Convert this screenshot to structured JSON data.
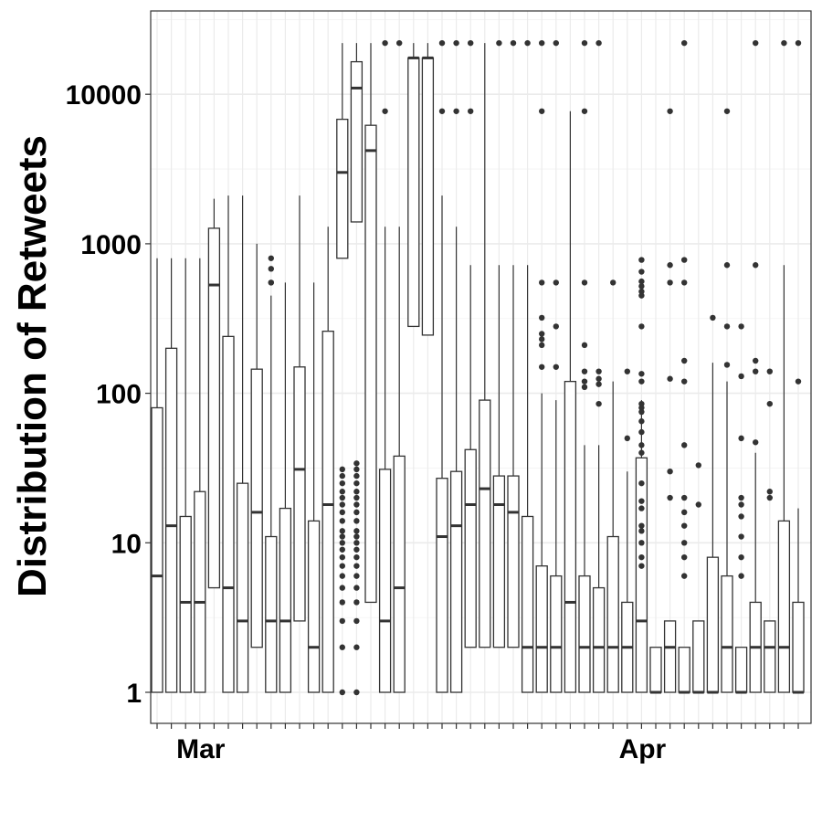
{
  "chart_data": {
    "type": "box",
    "title": "",
    "xlabel": "",
    "ylabel": "Distribution of Retweets",
    "y_scale": "log10",
    "ylim": [
      0.6,
      30000
    ],
    "y_ticks": [
      1,
      10,
      100,
      1000,
      10000
    ],
    "y_tick_labels": [
      "1",
      "10",
      "100",
      "1000",
      "10000"
    ],
    "x_tick_labels": [
      {
        "label": "Mar",
        "index": 3
      },
      {
        "label": "Apr",
        "index": 34
      }
    ],
    "grid": true,
    "legend": "none",
    "colors": {
      "box_fill": "#ffffff",
      "box_stroke": "#333333",
      "outlier": "#333333",
      "grid": "#ebebeb",
      "panel_border": "#333333"
    },
    "series": [
      {
        "min": 1,
        "q1": 1,
        "median": 6,
        "q3": 80,
        "max": 800,
        "outliers": []
      },
      {
        "min": 1,
        "q1": 1,
        "median": 13,
        "q3": 200,
        "max": 800,
        "outliers": []
      },
      {
        "min": 1,
        "q1": 1,
        "median": 4,
        "q3": 15,
        "max": 800,
        "outliers": []
      },
      {
        "min": 1,
        "q1": 1,
        "median": 4,
        "q3": 22,
        "max": 800,
        "outliers": []
      },
      {
        "min": 5,
        "q1": 5,
        "median": 530,
        "q3": 1270,
        "max": 2000,
        "outliers": []
      },
      {
        "min": 1,
        "q1": 1,
        "median": 5,
        "q3": 240,
        "max": 2100,
        "outliers": []
      },
      {
        "min": 1,
        "q1": 1,
        "median": 3,
        "q3": 25,
        "max": 2100,
        "outliers": []
      },
      {
        "min": 2,
        "q1": 2,
        "median": 16,
        "q3": 145,
        "max": 1000,
        "outliers": []
      },
      {
        "min": 1,
        "q1": 1,
        "median": 3,
        "q3": 11,
        "max": 450,
        "outliers": [
          550,
          800,
          680,
          550
        ]
      },
      {
        "min": 1,
        "q1": 1,
        "median": 3,
        "q3": 17,
        "max": 550,
        "outliers": []
      },
      {
        "min": 3,
        "q1": 3,
        "median": 31,
        "q3": 150,
        "max": 2100,
        "outliers": []
      },
      {
        "min": 1,
        "q1": 1,
        "median": 2,
        "q3": 14,
        "max": 550,
        "outliers": []
      },
      {
        "min": 1,
        "q1": 1,
        "median": 18,
        "q3": 260,
        "max": 1300,
        "outliers": []
      },
      {
        "min": 800,
        "q1": 800,
        "median": 3000,
        "q3": 6800,
        "max": 22000,
        "outliers": [
          1,
          2,
          3,
          4,
          5,
          6,
          7,
          8,
          9,
          10,
          11,
          12,
          14,
          16,
          18,
          20,
          22,
          25,
          28,
          31
        ]
      },
      {
        "min": 1400,
        "q1": 1400,
        "median": 11000,
        "q3": 16500,
        "max": 22000,
        "outliers": [
          1,
          2,
          3,
          4,
          5,
          6,
          7,
          8,
          9,
          10,
          11,
          12,
          14,
          16,
          18,
          20,
          22,
          25,
          28,
          31,
          34
        ]
      },
      {
        "min": 4,
        "q1": 4,
        "median": 4200,
        "q3": 6200,
        "max": 22000,
        "outliers": []
      },
      {
        "min": 1,
        "q1": 1,
        "median": 3,
        "q3": 31,
        "max": 1300,
        "outliers": [
          7700,
          22000
        ]
      },
      {
        "min": 1,
        "q1": 1,
        "median": 5,
        "q3": 38,
        "max": 1300,
        "outliers": [
          22000
        ]
      },
      {
        "min": 280,
        "q1": 280,
        "median": 17500,
        "q3": 17500,
        "max": 22000,
        "outliers": []
      },
      {
        "min": 245,
        "q1": 245,
        "median": 17500,
        "q3": 17500,
        "max": 22000,
        "outliers": []
      },
      {
        "min": 1,
        "q1": 1,
        "median": 11,
        "q3": 27,
        "max": 2100,
        "outliers": [
          7700,
          22000
        ]
      },
      {
        "min": 1,
        "q1": 1,
        "median": 13,
        "q3": 30,
        "max": 1300,
        "outliers": [
          7700,
          22000
        ]
      },
      {
        "min": 2,
        "q1": 2,
        "median": 18,
        "q3": 42,
        "max": 720,
        "outliers": [
          7700,
          22000
        ]
      },
      {
        "min": 2,
        "q1": 2,
        "median": 23,
        "q3": 90,
        "max": 22000,
        "outliers": []
      },
      {
        "min": 2,
        "q1": 2,
        "median": 18,
        "q3": 28,
        "max": 720,
        "outliers": [
          22000
        ]
      },
      {
        "min": 2,
        "q1": 2,
        "median": 16,
        "q3": 28,
        "max": 720,
        "outliers": [
          22000
        ]
      },
      {
        "min": 1,
        "q1": 1,
        "median": 2,
        "q3": 15,
        "max": 720,
        "outliers": [
          22000
        ]
      },
      {
        "min": 1,
        "q1": 1,
        "median": 2,
        "q3": 7,
        "max": 100,
        "outliers": [
          150,
          210,
          230,
          250,
          320,
          550,
          7700,
          22000
        ]
      },
      {
        "min": 1,
        "q1": 1,
        "median": 2,
        "q3": 6,
        "max": 90,
        "outliers": [
          150,
          280,
          550,
          22000
        ]
      },
      {
        "min": 1,
        "q1": 1,
        "median": 4,
        "q3": 120,
        "max": 7700,
        "outliers": []
      },
      {
        "min": 1,
        "q1": 1,
        "median": 2,
        "q3": 6,
        "max": 45,
        "outliers": [
          110,
          120,
          140,
          210,
          550,
          7700,
          22000
        ]
      },
      {
        "min": 1,
        "q1": 1,
        "median": 2,
        "q3": 5,
        "max": 45,
        "outliers": [
          85,
          115,
          125,
          140,
          22000
        ]
      },
      {
        "min": 1,
        "q1": 1,
        "median": 2,
        "q3": 11,
        "max": 120,
        "outliers": [
          550
        ]
      },
      {
        "min": 1,
        "q1": 1,
        "median": 2,
        "q3": 4,
        "max": 30,
        "outliers": [
          50,
          140
        ]
      },
      {
        "min": 1,
        "q1": 1,
        "median": 3,
        "q3": 37,
        "max": 90,
        "outliers": [
          7,
          8,
          10,
          12,
          13,
          17,
          19,
          25,
          40,
          45,
          55,
          65,
          75,
          80,
          85,
          120,
          135,
          280,
          450,
          480,
          520,
          560,
          650,
          780
        ]
      },
      {
        "min": 1,
        "q1": 1,
        "median": 1,
        "q3": 2,
        "max": 2,
        "outliers": []
      },
      {
        "min": 1,
        "q1": 1,
        "median": 2,
        "q3": 3,
        "max": 3,
        "outliers": [
          20,
          30,
          125,
          550,
          720,
          7700
        ]
      },
      {
        "min": 1,
        "q1": 1,
        "median": 1,
        "q3": 2,
        "max": 2,
        "outliers": [
          6,
          8,
          10,
          13,
          16,
          20,
          45,
          120,
          165,
          550,
          780,
          22000
        ]
      },
      {
        "min": 1,
        "q1": 1,
        "median": 1,
        "q3": 3,
        "max": 3,
        "outliers": [
          18,
          33
        ]
      },
      {
        "min": 1,
        "q1": 1,
        "median": 1,
        "q3": 8,
        "max": 160,
        "outliers": [
          320
        ]
      },
      {
        "min": 1,
        "q1": 1,
        "median": 2,
        "q3": 6,
        "max": 120,
        "outliers": [
          155,
          280,
          720,
          7700
        ]
      },
      {
        "min": 1,
        "q1": 1,
        "median": 1,
        "q3": 2,
        "max": 2,
        "outliers": [
          6,
          8,
          11,
          15,
          18,
          20,
          50,
          130,
          280
        ]
      },
      {
        "min": 1,
        "q1": 1,
        "median": 2,
        "q3": 4,
        "max": 40,
        "outliers": [
          47,
          140,
          165,
          720,
          22000
        ]
      },
      {
        "min": 1,
        "q1": 1,
        "median": 2,
        "q3": 3,
        "max": 3,
        "outliers": [
          20,
          22,
          85,
          140
        ]
      },
      {
        "min": 1,
        "q1": 1,
        "median": 2,
        "q3": 14,
        "max": 720,
        "outliers": [
          22000
        ]
      },
      {
        "min": 1,
        "q1": 1,
        "median": 1,
        "q3": 4,
        "max": 17,
        "outliers": [
          120,
          22000
        ]
      }
    ]
  }
}
